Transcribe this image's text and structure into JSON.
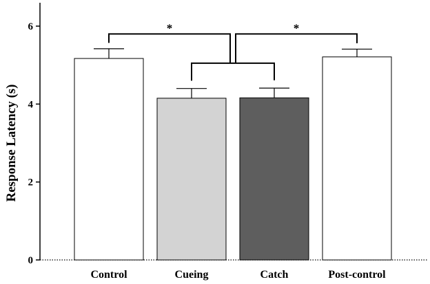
{
  "chart_data": {
    "type": "bar",
    "categories": [
      "Control",
      "Cueing",
      "Catch",
      "Post-control"
    ],
    "values": [
      5.17,
      4.15,
      4.16,
      5.21
    ],
    "errors": [
      0.25,
      0.25,
      0.25,
      0.2
    ],
    "bar_colors": [
      "#ffffff",
      "#d3d3d3",
      "#5e5e5e",
      "#ffffff"
    ],
    "ylabel": "Response Latency (s)",
    "ylim": [
      0,
      6.6
    ],
    "yticks": [
      0,
      2,
      4,
      6
    ],
    "grid": false,
    "significance": [
      {
        "left_group": [
          0
        ],
        "right_group": [
          1,
          2
        ],
        "label": "*"
      },
      {
        "left_group": [
          1,
          2
        ],
        "right_group": [
          3
        ],
        "label": "*"
      }
    ]
  }
}
